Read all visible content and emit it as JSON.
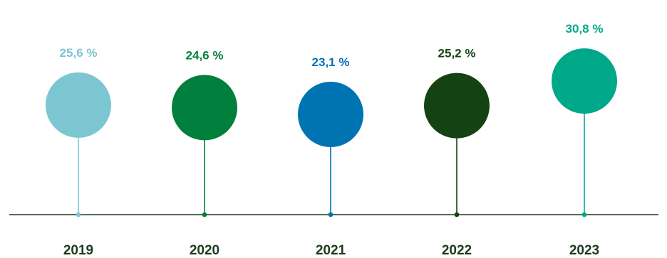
{
  "chart_data": {
    "type": "lollipop",
    "categories": [
      "2019",
      "2020",
      "2021",
      "2022",
      "2023"
    ],
    "values": [
      25.6,
      24.6,
      23.1,
      25.2,
      30.8
    ],
    "value_labels": [
      "25,6 %",
      "24,6 %",
      "23,1 %",
      "25,2 %",
      "30,8 %"
    ],
    "colors": [
      "#7cc6d2",
      "#00803c",
      "#0073b3",
      "#154212",
      "#00a88a"
    ],
    "baseline_color": "#1e3a1f",
    "title": "",
    "xlabel": "",
    "ylabel": "",
    "grid": false,
    "legend": "none"
  }
}
